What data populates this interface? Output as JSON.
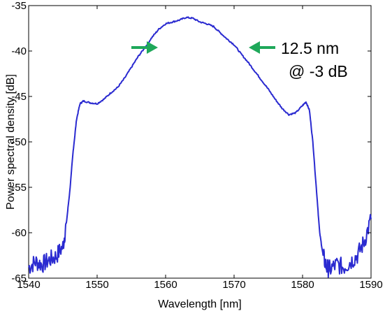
{
  "chart_data": {
    "type": "line",
    "title": "",
    "xlabel": "Wavelength  [nm]",
    "ylabel": "Power spectral density  [dB]",
    "xlim": [
      1540,
      1590
    ],
    "ylim": [
      -65,
      -35
    ],
    "x_ticks": [
      1540,
      1550,
      1560,
      1570,
      1580,
      1590
    ],
    "y_ticks": [
      -35,
      -40,
      -45,
      -50,
      -55,
      -60,
      -65
    ],
    "x_tick_labels": [
      "1540",
      "1550",
      "1560",
      "1570",
      "1580",
      "1590"
    ],
    "y_tick_labels": [
      "-35",
      "-40",
      "-45",
      "-50",
      "-55",
      "-60",
      "-65"
    ],
    "grid": false,
    "line_color": "#2a2ad0",
    "arrow_color": "#1fa85a",
    "annotation": {
      "line1": "12.5 nm",
      "line2": "@ -3 dB"
    },
    "series": [
      {
        "x": [
          1540,
          1541,
          1542,
          1543,
          1544,
          1545,
          1545.5,
          1546,
          1546.5,
          1547,
          1547.5,
          1548,
          1549,
          1550,
          1551,
          1552,
          1553,
          1554,
          1555,
          1556,
          1557,
          1558,
          1559,
          1560,
          1561,
          1562,
          1563,
          1564,
          1565,
          1566,
          1567,
          1568,
          1569,
          1570,
          1571,
          1572,
          1573,
          1574,
          1575,
          1576,
          1577,
          1578,
          1579,
          1580,
          1580.5,
          1581,
          1581.5,
          1582,
          1582.5,
          1583,
          1583.5,
          1584,
          1585,
          1586,
          1587,
          1588,
          1589,
          1590
        ],
        "y": [
          -63.8,
          -63.2,
          -63.5,
          -63.0,
          -62.6,
          -61.5,
          -59.0,
          -55.5,
          -51.0,
          -47.5,
          -45.8,
          -45.5,
          -45.7,
          -45.8,
          -45.3,
          -44.6,
          -44.0,
          -43.0,
          -41.8,
          -40.6,
          -39.6,
          -38.5,
          -37.6,
          -37.0,
          -36.8,
          -36.6,
          -36.3,
          -36.4,
          -36.8,
          -37.0,
          -37.3,
          -38.0,
          -38.7,
          -39.3,
          -40.3,
          -41.2,
          -42.2,
          -43.2,
          -44.2,
          -45.3,
          -46.3,
          -47.0,
          -46.8,
          -46.0,
          -45.6,
          -46.5,
          -50.0,
          -55.0,
          -60.0,
          -62.5,
          -63.8,
          -64.0,
          -63.5,
          -63.8,
          -63.2,
          -62.5,
          -61.0,
          -58.5
        ]
      }
    ]
  }
}
